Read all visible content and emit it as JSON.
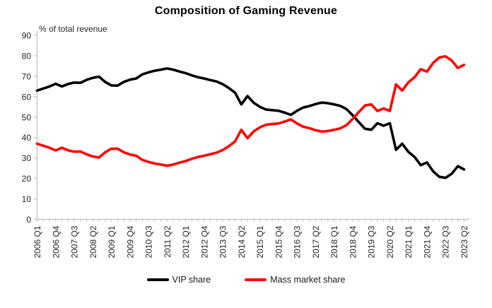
{
  "title": "Composition of Gaming Revenue",
  "y_axis": {
    "label": "% of total revenue"
  },
  "legend": [
    {
      "label": "VIP share",
      "color": "#000000"
    },
    {
      "label": "Mass market share",
      "color": "#FF0000"
    }
  ],
  "chart_data": {
    "type": "line",
    "title": "Composition of Gaming Revenue",
    "ylabel": "% of total revenue",
    "xlabel": "",
    "ylim": [
      0,
      90
    ],
    "y_tick_step": 10,
    "grid": false,
    "legend_position": "bottom",
    "axis_color": "#BFBFBF",
    "x_tick_label_every": 3,
    "categories": [
      "2006 Q1",
      "2006 Q2",
      "2006 Q3",
      "2006 Q4",
      "2007 Q1",
      "2007 Q2",
      "2007 Q3",
      "2007 Q4",
      "2008 Q1",
      "2008 Q2",
      "2008 Q3",
      "2008 Q4",
      "2009 Q1",
      "2009 Q2",
      "2009 Q3",
      "2009 Q4",
      "2010 Q1",
      "2010 Q2",
      "2010 Q3",
      "2010 Q4",
      "2011 Q1",
      "2011 Q2",
      "2011 Q3",
      "2011 Q4",
      "2012 Q1",
      "2012 Q2",
      "2012 Q3",
      "2012 Q4",
      "2013 Q1",
      "2013 Q2",
      "2013 Q3",
      "2013 Q4",
      "2014 Q1",
      "2014 Q2",
      "2014 Q3",
      "2014 Q4",
      "2015 Q1",
      "2015 Q2",
      "2015 Q3",
      "2015 Q4",
      "2016 Q1",
      "2016 Q2",
      "2016 Q3",
      "2016 Q4",
      "2017 Q1",
      "2017 Q2",
      "2017 Q3",
      "2017 Q4",
      "2018 Q1",
      "2018 Q2",
      "2018 Q3",
      "2018 Q4",
      "2019 Q1",
      "2019 Q2",
      "2019 Q3",
      "2019 Q4",
      "2020 Q1",
      "2020 Q2",
      "2020 Q3",
      "2020 Q4",
      "2021 Q1",
      "2021 Q2",
      "2021 Q3",
      "2021 Q4",
      "2022 Q1",
      "2022 Q2",
      "2022 Q3",
      "2022 Q4",
      "2023 Q1",
      "2023 Q2"
    ],
    "series": [
      {
        "name": "VIP share",
        "color": "#000000",
        "values": [
          63.0,
          64.0,
          65.0,
          66.3,
          65.0,
          66.2,
          66.9,
          66.8,
          68.2,
          69.2,
          69.8,
          67.2,
          65.5,
          65.4,
          67.2,
          68.3,
          68.9,
          70.9,
          71.9,
          72.7,
          73.2,
          73.8,
          73.2,
          72.3,
          71.5,
          70.4,
          69.5,
          68.9,
          68.1,
          67.4,
          66.1,
          64.2,
          61.9,
          56.2,
          60.3,
          57.0,
          55.0,
          53.7,
          53.4,
          53.1,
          52.2,
          51.1,
          53.1,
          54.7,
          55.4,
          56.4,
          57.1,
          56.8,
          56.2,
          55.5,
          53.9,
          50.9,
          47.5,
          44.3,
          43.8,
          47.0,
          45.8,
          47.0,
          34.0,
          37.0,
          33.0,
          30.5,
          26.5,
          27.8,
          23.5,
          20.8,
          20.3,
          22.3,
          26.0,
          24.4
        ]
      },
      {
        "name": "Mass market share",
        "color": "#FF0000",
        "values": [
          37.0,
          36.0,
          35.0,
          33.7,
          35.0,
          33.8,
          33.1,
          33.2,
          31.8,
          30.8,
          30.2,
          32.8,
          34.5,
          34.6,
          32.8,
          31.7,
          31.1,
          29.1,
          28.1,
          27.3,
          26.8,
          26.2,
          26.8,
          27.7,
          28.5,
          29.6,
          30.5,
          31.1,
          31.9,
          32.6,
          33.9,
          35.8,
          38.1,
          43.8,
          39.7,
          43.0,
          45.0,
          46.3,
          46.6,
          46.9,
          47.8,
          48.9,
          46.9,
          45.3,
          44.6,
          43.6,
          42.9,
          43.2,
          43.8,
          44.5,
          46.1,
          49.1,
          52.5,
          55.7,
          56.2,
          53.0,
          54.2,
          53.0,
          66.0,
          63.0,
          67.0,
          69.5,
          73.5,
          72.2,
          76.5,
          79.2,
          79.7,
          77.7,
          74.0,
          75.6
        ]
      }
    ]
  }
}
